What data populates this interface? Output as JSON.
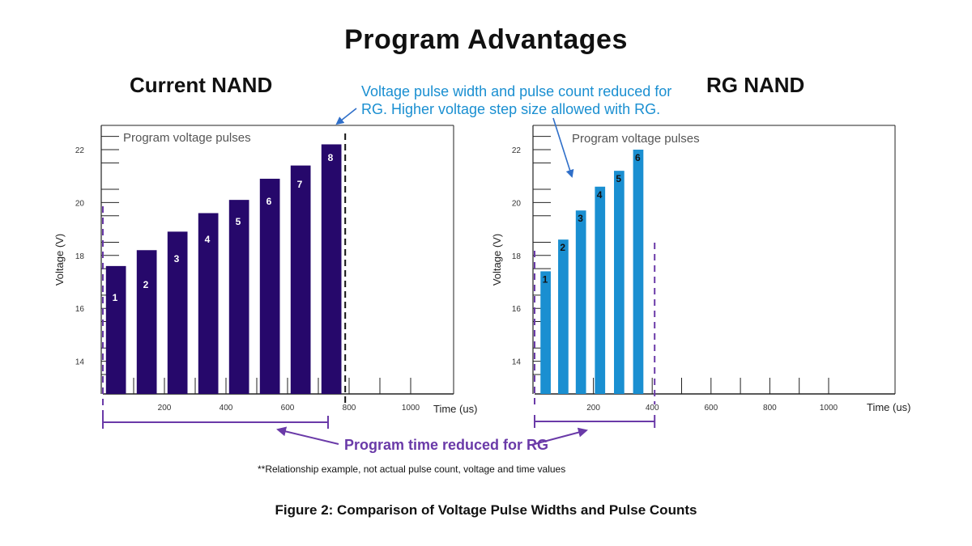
{
  "page": {
    "title": "Program Advantages",
    "callout_line1": "Voltage pulse width and pulse count reduced for",
    "callout_line2": "RG. Higher voltage step size allowed with RG.",
    "program_time_note": "Program time reduced for RG",
    "footnote": "**Relationship example, not actual pulse count, voltage and time values",
    "caption": "Figure 2: Comparison of Voltage Pulse Widths and Pulse Counts",
    "colors": {
      "current_nand": "#26086b",
      "rg_nand": "#1a8fd1",
      "annotation": "#6a3aa8",
      "callout": "#1a8fd1"
    }
  },
  "chart_data": [
    {
      "type": "bar",
      "title": "Current NAND",
      "subtitle": "Program voltage pulses",
      "xlabel": "Time (us)",
      "ylabel": "Voltage (V)",
      "xlim": [
        0,
        1000
      ],
      "ylim": [
        13,
        23
      ],
      "x_tick_labels": [
        "200",
        "400",
        "600",
        "800",
        "1000"
      ],
      "x_tick_values": [
        200,
        400,
        600,
        800,
        1000
      ],
      "y_tick_labels": [
        "14",
        "16",
        "18",
        "20",
        "22"
      ],
      "y_tick_values": [
        14,
        16,
        18,
        20,
        22
      ],
      "color": "#26086b",
      "series": [
        {
          "labels": [
            "1",
            "2",
            "3",
            "4",
            "5",
            "6",
            "7",
            "8"
          ],
          "x_start": [
            10,
            110,
            210,
            310,
            410,
            510,
            610,
            710
          ],
          "x_end": [
            75,
            175,
            275,
            375,
            475,
            575,
            675,
            775
          ],
          "values": [
            17.6,
            18.2,
            18.9,
            19.6,
            20.1,
            20.9,
            21.4,
            22.2
          ]
        }
      ],
      "program_end_us": 790
    },
    {
      "type": "bar",
      "title": "RG NAND",
      "subtitle": "Program voltage pulses",
      "xlabel": "Time (us)",
      "ylabel": "Voltage (V)",
      "xlim": [
        0,
        1000
      ],
      "ylim": [
        13,
        23
      ],
      "x_tick_labels": [
        "200",
        "400",
        "600",
        "800",
        "1000"
      ],
      "x_tick_values": [
        200,
        400,
        600,
        800,
        1000
      ],
      "y_tick_labels": [
        "14",
        "16",
        "18",
        "20",
        "22"
      ],
      "y_tick_values": [
        14,
        16,
        18,
        20,
        22
      ],
      "color": "#1a8fd1",
      "series": [
        {
          "labels": [
            "1",
            "2",
            "3",
            "4",
            "5",
            "6"
          ],
          "x_start": [
            20,
            80,
            140,
            205,
            270,
            335
          ],
          "x_end": [
            55,
            115,
            175,
            240,
            305,
            370
          ],
          "values": [
            17.4,
            18.6,
            19.7,
            20.6,
            21.2,
            22.0
          ]
        }
      ],
      "program_end_us": 400
    }
  ]
}
